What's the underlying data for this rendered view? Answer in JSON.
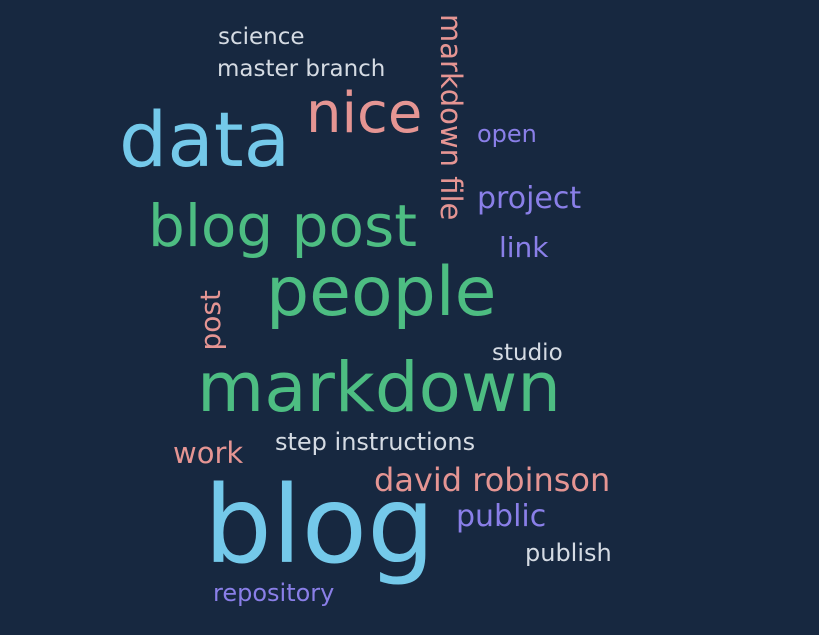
{
  "word_cloud": {
    "background_color": "#172840",
    "colors": {
      "blue": "#74c9ea",
      "green": "#4dbd82",
      "pink": "#e59593",
      "purple": "#8a7fe8",
      "light": "#d5dbe3"
    },
    "words": {
      "science": "science",
      "master_branch": "master branch",
      "markdown_file": "markdown file",
      "nice": "nice",
      "data": "data",
      "open": "open",
      "project": "project",
      "blog_post": "blog post",
      "link": "link",
      "post": "post",
      "people": "people",
      "studio": "studio",
      "markdown": "markdown",
      "work": "work",
      "step_instructions": "step instructions",
      "david_robinson": "david robinson",
      "blog": "blog",
      "public": "public",
      "publish": "publish",
      "repository": "repository"
    }
  }
}
